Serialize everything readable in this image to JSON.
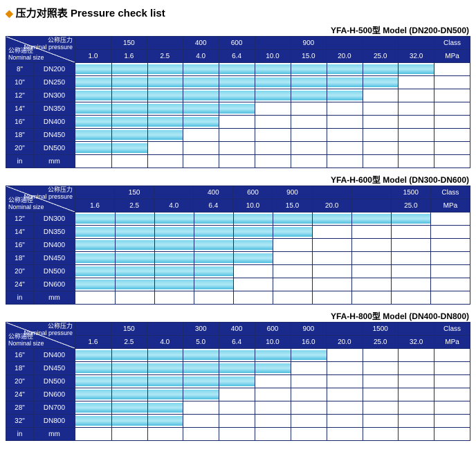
{
  "title": "压力对照表 Pressure check list",
  "corner": {
    "top": "公称压力\nNominal pressure",
    "bottom": "公称通径\nNominal size"
  },
  "footer": {
    "in": "in",
    "mm": "mm"
  },
  "colors": {
    "header_bg": "#1a2a8c",
    "header_text": "#ffffff",
    "border": "#1a2a6c",
    "bar_gradient": [
      "#7fd7ed",
      "#b0e8f5",
      "#4fc0e0"
    ],
    "background": "#ffffff"
  },
  "typography": {
    "base_fontsize": 10,
    "title_fontsize": 15
  },
  "leftColWidths": [
    40,
    60
  ],
  "tables": [
    {
      "model": "YFA-H-500型  Model (DN200-DN500)",
      "class_row": [
        "",
        "150",
        "",
        "400",
        "600",
        "",
        "900",
        "",
        "",
        "",
        "Class"
      ],
      "mpa_row": [
        "1.0",
        "1.6",
        "2.5",
        "4.0",
        "6.4",
        "10.0",
        "15.0",
        "20.0",
        "25.0",
        "32.0",
        "MPa"
      ],
      "cols": 11,
      "rows": [
        {
          "in": "8\"",
          "mm": "DN200",
          "bar": 10
        },
        {
          "in": "10\"",
          "mm": "DN250",
          "bar": 9
        },
        {
          "in": "12\"",
          "mm": "DN300",
          "bar": 8
        },
        {
          "in": "14\"",
          "mm": "DN350",
          "bar": 5
        },
        {
          "in": "16\"",
          "mm": "DN400",
          "bar": 4
        },
        {
          "in": "18\"",
          "mm": "DN450",
          "bar": 3
        },
        {
          "in": "20\"",
          "mm": "DN500",
          "bar": 2
        }
      ]
    },
    {
      "model": "YFA-H-600型  Model (DN300-DN600)",
      "class_row": [
        "",
        "150",
        "",
        "400",
        "600",
        "900",
        "",
        "",
        "1500",
        "Class"
      ],
      "mpa_row": [
        "1.6",
        "2.5",
        "4.0",
        "6.4",
        "10.0",
        "15.0",
        "20.0",
        "",
        "25.0",
        "MPa"
      ],
      "cols": 10,
      "rows": [
        {
          "in": "12\"",
          "mm": "DN300",
          "bar": 9
        },
        {
          "in": "14\"",
          "mm": "DN350",
          "bar": 6
        },
        {
          "in": "16\"",
          "mm": "DN400",
          "bar": 5
        },
        {
          "in": "18\"",
          "mm": "DN450",
          "bar": 5
        },
        {
          "in": "20\"",
          "mm": "DN500",
          "bar": 4
        },
        {
          "in": "24\"",
          "mm": "DN600",
          "bar": 4
        }
      ]
    },
    {
      "model": "YFA-H-800型  Model (DN400-DN800)",
      "class_row": [
        "",
        "150",
        "",
        "300",
        "400",
        "600",
        "900",
        "",
        "1500",
        "",
        "Class"
      ],
      "mpa_row": [
        "1.6",
        "2.5",
        "4.0",
        "5.0",
        "6.4",
        "10.0",
        "16.0",
        "20.0",
        "25.0",
        "32.0",
        "MPa"
      ],
      "cols": 11,
      "rows": [
        {
          "in": "16\"",
          "mm": "DN400",
          "bar": 7
        },
        {
          "in": "18\"",
          "mm": "DN450",
          "bar": 6
        },
        {
          "in": "20\"",
          "mm": "DN500",
          "bar": 5
        },
        {
          "in": "24\"",
          "mm": "DN600",
          "bar": 4
        },
        {
          "in": "28\"",
          "mm": "DN700",
          "bar": 3
        },
        {
          "in": "32\"",
          "mm": "DN800",
          "bar": 3
        }
      ]
    }
  ]
}
